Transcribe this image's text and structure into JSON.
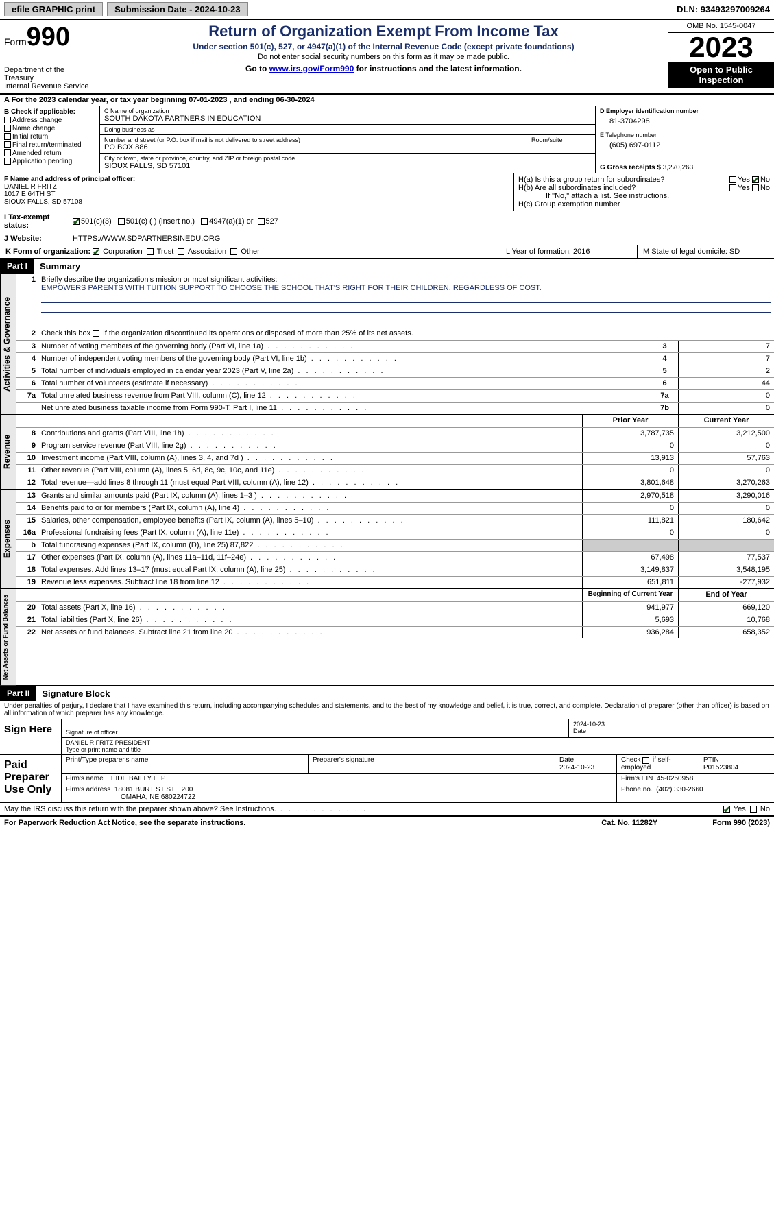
{
  "topbar": {
    "efile": "efile GRAPHIC print",
    "submission": "Submission Date - 2024-10-23",
    "dln": "DLN: 93493297009264"
  },
  "header": {
    "form_label": "Form",
    "form_num": "990",
    "dept": "Department of the Treasury\nInternal Revenue Service",
    "title": "Return of Organization Exempt From Income Tax",
    "sub1": "Under section 501(c), 527, or 4947(a)(1) of the Internal Revenue Code (except private foundations)",
    "sub2": "Do not enter social security numbers on this form as it may be made public.",
    "sub3_pre": "Go to ",
    "sub3_link": "www.irs.gov/Form990",
    "sub3_post": " for instructions and the latest information.",
    "omb": "OMB No. 1545-0047",
    "year": "2023",
    "otp": "Open to Public Inspection"
  },
  "section_a": "A For the 2023 calendar year, or tax year beginning 07-01-2023   , and ending 06-30-2024",
  "block_b": {
    "hdr": "B Check if applicable:",
    "items": [
      "Address change",
      "Name change",
      "Initial return",
      "Final return/terminated",
      "Amended return",
      "Application pending"
    ]
  },
  "block_c": {
    "name_lbl": "C Name of organization",
    "name": "SOUTH DAKOTA PARTNERS IN EDUCATION",
    "dba_lbl": "Doing business as",
    "dba": "",
    "addr_lbl": "Number and street (or P.O. box if mail is not delivered to street address)",
    "addr": "PO BOX 886",
    "room_lbl": "Room/suite",
    "city_lbl": "City or town, state or province, country, and ZIP or foreign postal code",
    "city": "SIOUX FALLS, SD  57101"
  },
  "block_d": {
    "ein_lbl": "D Employer identification number",
    "ein": "81-3704298",
    "tel_lbl": "E Telephone number",
    "tel": "(605) 697-0112",
    "gross_lbl": "G Gross receipts $",
    "gross": "3,270,263"
  },
  "block_f": {
    "lbl": "F  Name and address of principal officer:",
    "name": "DANIEL R FRITZ",
    "addr1": "1017 E 64TH ST",
    "addr2": "SIOUX FALLS, SD  57108"
  },
  "block_h": {
    "ha": "H(a)  Is this a group return for subordinates?",
    "hb": "H(b)  Are all subordinates included?",
    "hb_note": "If \"No,\" attach a list. See instructions.",
    "hc": "H(c)  Group exemption number"
  },
  "tax_status": {
    "lbl": "I  Tax-exempt status:",
    "opts": [
      "501(c)(3)",
      "501(c) (  ) (insert no.)",
      "4947(a)(1) or",
      "527"
    ]
  },
  "website": {
    "lbl": "J  Website:",
    "val": "HTTPS://WWW.SDPARTNERSINEDU.ORG"
  },
  "form_org": {
    "lbl": "K Form of organization:",
    "opts": [
      "Corporation",
      "Trust",
      "Association",
      "Other"
    ]
  },
  "l_year": "L Year of formation: 2016",
  "m_state": "M State of legal domicile: SD",
  "part1": {
    "hdr": "Part I",
    "title": "Summary",
    "line1_lbl": "Briefly describe the organization's mission or most significant activities:",
    "line1_val": "EMPOWERS PARENTS WITH TUITION SUPPORT TO CHOOSE THE SCHOOL THAT'S RIGHT FOR THEIR CHILDREN, REGARDLESS OF COST.",
    "line2": "Check this box      if the organization discontinued its operations or disposed of more than 25% of its net assets.",
    "gov_lines": [
      {
        "n": "3",
        "t": "Number of voting members of the governing body (Part VI, line 1a)",
        "box": "3",
        "v": "7"
      },
      {
        "n": "4",
        "t": "Number of independent voting members of the governing body (Part VI, line 1b)",
        "box": "4",
        "v": "7"
      },
      {
        "n": "5",
        "t": "Total number of individuals employed in calendar year 2023 (Part V, line 2a)",
        "box": "5",
        "v": "2"
      },
      {
        "n": "6",
        "t": "Total number of volunteers (estimate if necessary)",
        "box": "6",
        "v": "44"
      },
      {
        "n": "7a",
        "t": "Total unrelated business revenue from Part VIII, column (C), line 12",
        "box": "7a",
        "v": "0"
      },
      {
        "n": "",
        "t": "Net unrelated business taxable income from Form 990-T, Part I, line 11",
        "box": "7b",
        "v": "0"
      }
    ],
    "col_prior": "Prior Year",
    "col_current": "Current Year",
    "rev_lines": [
      {
        "n": "8",
        "t": "Contributions and grants (Part VIII, line 1h)",
        "p": "3,787,735",
        "c": "3,212,500"
      },
      {
        "n": "9",
        "t": "Program service revenue (Part VIII, line 2g)",
        "p": "0",
        "c": "0"
      },
      {
        "n": "10",
        "t": "Investment income (Part VIII, column (A), lines 3, 4, and 7d )",
        "p": "13,913",
        "c": "57,763"
      },
      {
        "n": "11",
        "t": "Other revenue (Part VIII, column (A), lines 5, 6d, 8c, 9c, 10c, and 11e)",
        "p": "0",
        "c": "0"
      },
      {
        "n": "12",
        "t": "Total revenue—add lines 8 through 11 (must equal Part VIII, column (A), line 12)",
        "p": "3,801,648",
        "c": "3,270,263"
      }
    ],
    "exp_lines": [
      {
        "n": "13",
        "t": "Grants and similar amounts paid (Part IX, column (A), lines 1–3 )",
        "p": "2,970,518",
        "c": "3,290,016"
      },
      {
        "n": "14",
        "t": "Benefits paid to or for members (Part IX, column (A), line 4)",
        "p": "0",
        "c": "0"
      },
      {
        "n": "15",
        "t": "Salaries, other compensation, employee benefits (Part IX, column (A), lines 5–10)",
        "p": "111,821",
        "c": "180,642"
      },
      {
        "n": "16a",
        "t": "Professional fundraising fees (Part IX, column (A), line 11e)",
        "p": "0",
        "c": "0"
      },
      {
        "n": "b",
        "t": "Total fundraising expenses (Part IX, column (D), line 25) 87,822",
        "p": "SHADED",
        "c": "SHADED"
      },
      {
        "n": "17",
        "t": "Other expenses (Part IX, column (A), lines 11a–11d, 11f–24e)",
        "p": "67,498",
        "c": "77,537"
      },
      {
        "n": "18",
        "t": "Total expenses. Add lines 13–17 (must equal Part IX, column (A), line 25)",
        "p": "3,149,837",
        "c": "3,548,195"
      },
      {
        "n": "19",
        "t": "Revenue less expenses. Subtract line 18 from line 12",
        "p": "651,811",
        "c": "-277,932"
      }
    ],
    "col_begin": "Beginning of Current Year",
    "col_end": "End of Year",
    "net_lines": [
      {
        "n": "20",
        "t": "Total assets (Part X, line 16)",
        "p": "941,977",
        "c": "669,120"
      },
      {
        "n": "21",
        "t": "Total liabilities (Part X, line 26)",
        "p": "5,693",
        "c": "10,768"
      },
      {
        "n": "22",
        "t": "Net assets or fund balances. Subtract line 21 from line 20",
        "p": "936,284",
        "c": "658,352"
      }
    ],
    "side_gov": "Activities & Governance",
    "side_rev": "Revenue",
    "side_exp": "Expenses",
    "side_net": "Net Assets or Fund Balances"
  },
  "part2": {
    "hdr": "Part II",
    "title": "Signature Block",
    "decl": "Under penalties of perjury, I declare that I have examined this return, including accompanying schedules and statements, and to the best of my knowledge and belief, it is true, correct, and complete. Declaration of preparer (other than officer) is based on all information of which preparer has any knowledge."
  },
  "sign": {
    "lbl": "Sign Here",
    "sig_lbl": "Signature of officer",
    "officer": "DANIEL R FRITZ  PRESIDENT",
    "type_lbl": "Type or print name and title",
    "date_lbl": "Date",
    "date": "2024-10-23"
  },
  "prep": {
    "lbl": "Paid Preparer Use Only",
    "name_lbl": "Print/Type preparer's name",
    "sig_lbl": "Preparer's signature",
    "date_lbl": "Date",
    "date": "2024-10-23",
    "check_lbl": "Check       if self-employed",
    "ptin_lbl": "PTIN",
    "ptin": "P01523804",
    "firm_name_lbl": "Firm's name",
    "firm_name": "EIDE BAILLY LLP",
    "firm_ein_lbl": "Firm's EIN",
    "firm_ein": "45-0250958",
    "firm_addr_lbl": "Firm's address",
    "firm_addr1": "18081 BURT ST STE 200",
    "firm_addr2": "OMAHA, NE  680224722",
    "phone_lbl": "Phone no.",
    "phone": "(402) 330-2660"
  },
  "discuss": "May the IRS discuss this return with the preparer shown above? See Instructions.",
  "footer": {
    "left": "For Paperwork Reduction Act Notice, see the separate instructions.",
    "mid": "Cat. No. 11282Y",
    "right": "Form 990 (2023)"
  },
  "colors": {
    "blue": "#1a2e6b",
    "link": "#0000cc",
    "check": "#1a5c1a"
  }
}
